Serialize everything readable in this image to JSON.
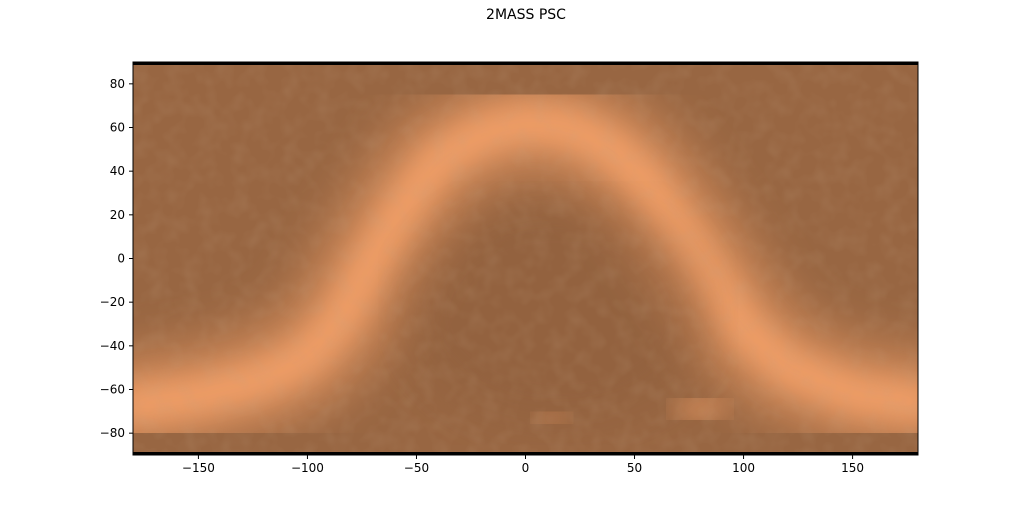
{
  "chart_data": {
    "type": "heatmap",
    "title": "2MASS PSC",
    "xlabel": "",
    "ylabel": "",
    "xlim": [
      -180,
      180
    ],
    "ylim": [
      -90,
      90
    ],
    "x_ticks": [
      -150,
      -100,
      -50,
      0,
      50,
      100,
      150
    ],
    "y_ticks": [
      80,
      60,
      40,
      20,
      0,
      -20,
      -40,
      -60,
      -80
    ],
    "grid": false,
    "colormap": "copper",
    "colors": {
      "background": "#9c6a45",
      "band": "#f7a36a",
      "cold_spot": "#8a5c3b",
      "frame": "#000000"
    },
    "galactic_plane": {
      "description": "bright band of high source density",
      "longitudes": [
        -180,
        -150,
        -120,
        -100,
        -85,
        -70,
        -55,
        -40,
        -20,
        0,
        20,
        40,
        55,
        70,
        85,
        100,
        120,
        150,
        180
      ],
      "latitudes": [
        -67,
        -63,
        -55,
        -45,
        -28,
        0,
        25,
        45,
        57,
        62,
        60,
        50,
        36,
        15,
        -8,
        -32,
        -50,
        -62,
        -66
      ]
    }
  }
}
